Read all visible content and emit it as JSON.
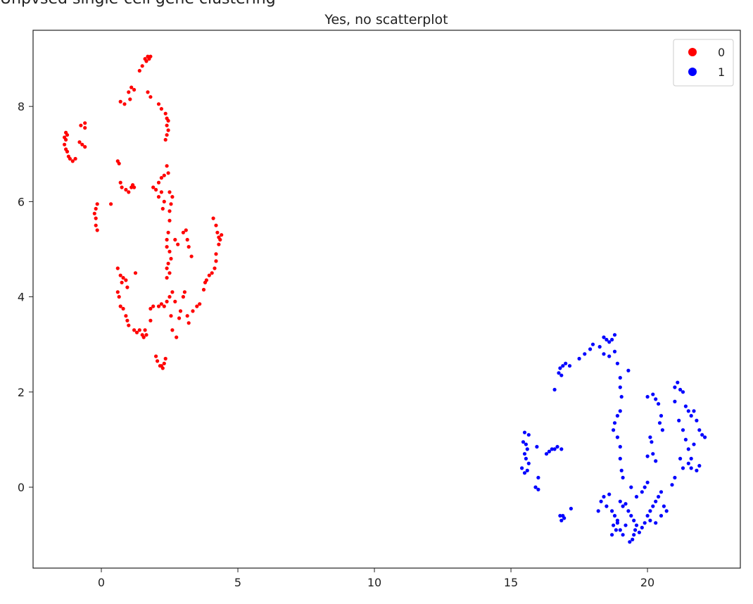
{
  "top_clipped_text": "Unpvsed single-cell gene clustering",
  "chart_data": {
    "type": "scatter",
    "title": "Yes, no scatterplot",
    "xlabel": "",
    "ylabel": "",
    "xlim": [
      -2.5,
      23.4
    ],
    "ylim": [
      -1.7,
      9.6
    ],
    "xticks": [
      0,
      5,
      10,
      15,
      20
    ],
    "yticks": [
      0,
      2,
      4,
      6,
      8
    ],
    "grid": false,
    "legend_position": "top-right",
    "series": [
      {
        "name": "0",
        "color": "#ff0000",
        "points": [
          [
            1.6,
            9.0
          ],
          [
            1.7,
            9.05
          ],
          [
            1.75,
            9.0
          ],
          [
            1.8,
            9.05
          ],
          [
            1.65,
            8.95
          ],
          [
            1.5,
            8.85
          ],
          [
            1.4,
            8.75
          ],
          [
            1.1,
            8.4
          ],
          [
            1.2,
            8.35
          ],
          [
            1.0,
            8.3
          ],
          [
            1.05,
            8.15
          ],
          [
            0.7,
            8.1
          ],
          [
            0.85,
            8.05
          ],
          [
            1.7,
            8.3
          ],
          [
            1.8,
            8.2
          ],
          [
            2.1,
            8.05
          ],
          [
            2.2,
            7.95
          ],
          [
            2.35,
            7.85
          ],
          [
            2.4,
            7.75
          ],
          [
            2.45,
            7.7
          ],
          [
            2.4,
            7.6
          ],
          [
            2.45,
            7.5
          ],
          [
            2.4,
            7.4
          ],
          [
            2.35,
            7.3
          ],
          [
            -1.3,
            7.45
          ],
          [
            -1.25,
            7.4
          ],
          [
            -1.35,
            7.35
          ],
          [
            -1.3,
            7.3
          ],
          [
            -1.35,
            7.2
          ],
          [
            -1.3,
            7.1
          ],
          [
            -1.25,
            7.05
          ],
          [
            -1.2,
            6.95
          ],
          [
            -1.15,
            6.9
          ],
          [
            -1.05,
            6.85
          ],
          [
            -0.95,
            6.9
          ],
          [
            -0.6,
            7.65
          ],
          [
            -0.75,
            7.6
          ],
          [
            -0.6,
            7.55
          ],
          [
            -0.8,
            7.25
          ],
          [
            -0.7,
            7.2
          ],
          [
            -0.6,
            7.15
          ],
          [
            0.6,
            6.85
          ],
          [
            0.65,
            6.8
          ],
          [
            0.7,
            6.4
          ],
          [
            0.75,
            6.3
          ],
          [
            0.9,
            6.25
          ],
          [
            1.0,
            6.2
          ],
          [
            1.1,
            6.3
          ],
          [
            1.15,
            6.35
          ],
          [
            1.2,
            6.3
          ],
          [
            1.9,
            6.3
          ],
          [
            2.0,
            6.25
          ],
          [
            2.1,
            6.4
          ],
          [
            2.2,
            6.5
          ],
          [
            2.3,
            6.55
          ],
          [
            2.4,
            6.75
          ],
          [
            2.45,
            6.6
          ],
          [
            2.2,
            6.2
          ],
          [
            2.1,
            6.1
          ],
          [
            2.3,
            6.0
          ],
          [
            2.25,
            5.85
          ],
          [
            2.5,
            6.2
          ],
          [
            2.6,
            6.1
          ],
          [
            2.55,
            5.95
          ],
          [
            2.5,
            5.8
          ],
          [
            2.5,
            5.6
          ],
          [
            -0.15,
            5.95
          ],
          [
            -0.2,
            5.85
          ],
          [
            -0.25,
            5.75
          ],
          [
            -0.2,
            5.65
          ],
          [
            -0.2,
            5.5
          ],
          [
            -0.15,
            5.4
          ],
          [
            0.35,
            5.95
          ],
          [
            2.45,
            5.35
          ],
          [
            2.4,
            5.2
          ],
          [
            2.4,
            5.05
          ],
          [
            2.5,
            4.95
          ],
          [
            2.55,
            4.8
          ],
          [
            2.45,
            4.7
          ],
          [
            2.4,
            4.6
          ],
          [
            2.5,
            4.5
          ],
          [
            2.4,
            4.4
          ],
          [
            2.7,
            5.2
          ],
          [
            2.8,
            5.1
          ],
          [
            3.0,
            5.35
          ],
          [
            3.1,
            5.4
          ],
          [
            3.15,
            5.2
          ],
          [
            3.2,
            5.05
          ],
          [
            3.3,
            4.85
          ],
          [
            4.1,
            5.65
          ],
          [
            4.2,
            5.5
          ],
          [
            4.25,
            5.35
          ],
          [
            4.3,
            5.25
          ],
          [
            4.35,
            5.2
          ],
          [
            4.4,
            5.3
          ],
          [
            4.3,
            5.1
          ],
          [
            4.2,
            4.9
          ],
          [
            4.2,
            4.75
          ],
          [
            4.15,
            4.6
          ],
          [
            4.05,
            4.5
          ],
          [
            3.95,
            4.45
          ],
          [
            3.85,
            4.35
          ],
          [
            3.8,
            4.3
          ],
          [
            3.75,
            4.15
          ],
          [
            0.6,
            4.6
          ],
          [
            0.7,
            4.45
          ],
          [
            0.75,
            4.3
          ],
          [
            0.8,
            4.4
          ],
          [
            0.9,
            4.35
          ],
          [
            0.95,
            4.2
          ],
          [
            1.25,
            4.5
          ],
          [
            0.6,
            4.1
          ],
          [
            0.65,
            4.0
          ],
          [
            0.7,
            3.8
          ],
          [
            0.8,
            3.75
          ],
          [
            0.9,
            3.6
          ],
          [
            0.95,
            3.5
          ],
          [
            1.0,
            3.4
          ],
          [
            1.2,
            3.3
          ],
          [
            1.3,
            3.25
          ],
          [
            1.4,
            3.3
          ],
          [
            1.5,
            3.2
          ],
          [
            1.55,
            3.15
          ],
          [
            1.6,
            3.3
          ],
          [
            1.65,
            3.2
          ],
          [
            1.8,
            3.5
          ],
          [
            1.8,
            3.75
          ],
          [
            1.9,
            3.8
          ],
          [
            2.1,
            3.8
          ],
          [
            2.2,
            3.85
          ],
          [
            2.3,
            3.8
          ],
          [
            2.4,
            3.9
          ],
          [
            2.5,
            4.0
          ],
          [
            2.6,
            4.1
          ],
          [
            2.7,
            3.9
          ],
          [
            2.55,
            3.6
          ],
          [
            2.6,
            3.3
          ],
          [
            2.75,
            3.15
          ],
          [
            2.85,
            3.55
          ],
          [
            2.9,
            3.7
          ],
          [
            3.0,
            4.0
          ],
          [
            3.05,
            4.1
          ],
          [
            3.15,
            3.6
          ],
          [
            3.2,
            3.45
          ],
          [
            3.35,
            3.7
          ],
          [
            3.5,
            3.8
          ],
          [
            3.6,
            3.85
          ],
          [
            2.0,
            2.75
          ],
          [
            2.05,
            2.65
          ],
          [
            2.15,
            2.55
          ],
          [
            2.25,
            2.5
          ],
          [
            2.3,
            2.6
          ],
          [
            2.35,
            2.7
          ],
          [
            2.2,
            2.55
          ]
        ]
      },
      {
        "name": "1",
        "color": "#0000ff",
        "points": [
          [
            18.4,
            3.15
          ],
          [
            18.5,
            3.1
          ],
          [
            18.6,
            3.05
          ],
          [
            18.7,
            3.1
          ],
          [
            18.8,
            3.2
          ],
          [
            18.25,
            2.95
          ],
          [
            18.0,
            3.0
          ],
          [
            17.9,
            2.9
          ],
          [
            17.7,
            2.8
          ],
          [
            17.5,
            2.7
          ],
          [
            18.4,
            2.8
          ],
          [
            18.6,
            2.75
          ],
          [
            18.8,
            2.85
          ],
          [
            18.9,
            2.6
          ],
          [
            19.0,
            2.3
          ],
          [
            19.0,
            2.1
          ],
          [
            19.05,
            1.9
          ],
          [
            19.0,
            1.6
          ],
          [
            18.9,
            1.5
          ],
          [
            18.8,
            1.35
          ],
          [
            18.75,
            1.2
          ],
          [
            18.9,
            1.05
          ],
          [
            19.0,
            0.85
          ],
          [
            19.0,
            0.6
          ],
          [
            19.05,
            0.35
          ],
          [
            19.1,
            0.2
          ],
          [
            19.3,
            2.45
          ],
          [
            16.8,
            2.5
          ],
          [
            16.9,
            2.55
          ],
          [
            17.0,
            2.6
          ],
          [
            16.75,
            2.4
          ],
          [
            16.85,
            2.35
          ],
          [
            16.6,
            2.05
          ],
          [
            17.15,
            2.55
          ],
          [
            15.5,
            1.15
          ],
          [
            15.65,
            1.1
          ],
          [
            15.45,
            0.95
          ],
          [
            15.55,
            0.9
          ],
          [
            15.6,
            0.8
          ],
          [
            15.5,
            0.7
          ],
          [
            15.55,
            0.6
          ],
          [
            15.4,
            0.4
          ],
          [
            15.5,
            0.3
          ],
          [
            15.6,
            0.35
          ],
          [
            15.65,
            0.5
          ],
          [
            15.95,
            0.85
          ],
          [
            16.0,
            0.2
          ],
          [
            15.9,
            0.0
          ],
          [
            16.0,
            -0.05
          ],
          [
            16.3,
            0.7
          ],
          [
            16.4,
            0.75
          ],
          [
            16.5,
            0.8
          ],
          [
            16.6,
            0.8
          ],
          [
            16.7,
            0.85
          ],
          [
            16.85,
            0.8
          ],
          [
            16.9,
            -0.6
          ],
          [
            16.85,
            -0.7
          ],
          [
            16.95,
            -0.65
          ],
          [
            16.8,
            -0.6
          ],
          [
            17.2,
            -0.45
          ],
          [
            20.0,
            1.9
          ],
          [
            20.2,
            1.95
          ],
          [
            20.3,
            1.85
          ],
          [
            20.4,
            1.75
          ],
          [
            20.5,
            1.5
          ],
          [
            20.45,
            1.35
          ],
          [
            20.55,
            1.2
          ],
          [
            20.1,
            1.05
          ],
          [
            20.15,
            0.95
          ],
          [
            20.2,
            0.7
          ],
          [
            20.3,
            0.55
          ],
          [
            20.0,
            0.65
          ],
          [
            21.0,
            2.1
          ],
          [
            21.1,
            2.2
          ],
          [
            21.2,
            2.05
          ],
          [
            21.3,
            2.0
          ],
          [
            21.4,
            1.7
          ],
          [
            21.5,
            1.6
          ],
          [
            21.6,
            1.5
          ],
          [
            21.7,
            1.6
          ],
          [
            21.8,
            1.4
          ],
          [
            21.9,
            1.2
          ],
          [
            22.0,
            1.1
          ],
          [
            22.1,
            1.05
          ],
          [
            21.7,
            0.9
          ],
          [
            21.6,
            0.6
          ],
          [
            21.5,
            0.5
          ],
          [
            21.6,
            0.4
          ],
          [
            21.8,
            0.35
          ],
          [
            21.9,
            0.45
          ],
          [
            21.0,
            1.8
          ],
          [
            21.15,
            1.4
          ],
          [
            21.3,
            1.2
          ],
          [
            21.4,
            1.0
          ],
          [
            21.5,
            0.8
          ],
          [
            21.2,
            0.6
          ],
          [
            21.3,
            0.4
          ],
          [
            21.0,
            0.2
          ],
          [
            20.9,
            0.05
          ],
          [
            19.0,
            -0.3
          ],
          [
            19.1,
            -0.4
          ],
          [
            19.2,
            -0.35
          ],
          [
            19.3,
            -0.5
          ],
          [
            19.4,
            -0.6
          ],
          [
            19.5,
            -0.7
          ],
          [
            19.6,
            -0.8
          ],
          [
            19.55,
            -0.9
          ],
          [
            19.5,
            -1.0
          ],
          [
            19.45,
            -1.1
          ],
          [
            19.7,
            -0.95
          ],
          [
            19.8,
            -0.85
          ],
          [
            19.9,
            -0.75
          ],
          [
            20.0,
            -0.6
          ],
          [
            20.1,
            -0.5
          ],
          [
            20.2,
            -0.4
          ],
          [
            20.3,
            -0.3
          ],
          [
            20.4,
            -0.2
          ],
          [
            20.5,
            -0.1
          ],
          [
            20.0,
            0.1
          ],
          [
            19.9,
            0.0
          ],
          [
            19.8,
            -0.1
          ],
          [
            19.6,
            -0.2
          ],
          [
            19.4,
            0.0
          ],
          [
            18.7,
            -0.5
          ],
          [
            18.8,
            -0.6
          ],
          [
            18.9,
            -0.7
          ],
          [
            18.75,
            -0.8
          ],
          [
            18.85,
            -0.9
          ],
          [
            18.7,
            -1.0
          ],
          [
            18.5,
            -0.4
          ],
          [
            18.3,
            -0.3
          ],
          [
            18.2,
            -0.5
          ],
          [
            18.4,
            -0.2
          ],
          [
            18.6,
            -0.15
          ],
          [
            19.0,
            -0.9
          ],
          [
            19.1,
            -1.0
          ],
          [
            19.2,
            -0.8
          ],
          [
            20.6,
            -0.4
          ],
          [
            20.7,
            -0.5
          ],
          [
            20.5,
            -0.6
          ],
          [
            20.1,
            -0.7
          ],
          [
            20.3,
            -0.75
          ],
          [
            19.35,
            -1.15
          ],
          [
            18.9,
            -0.75
          ]
        ]
      }
    ]
  }
}
